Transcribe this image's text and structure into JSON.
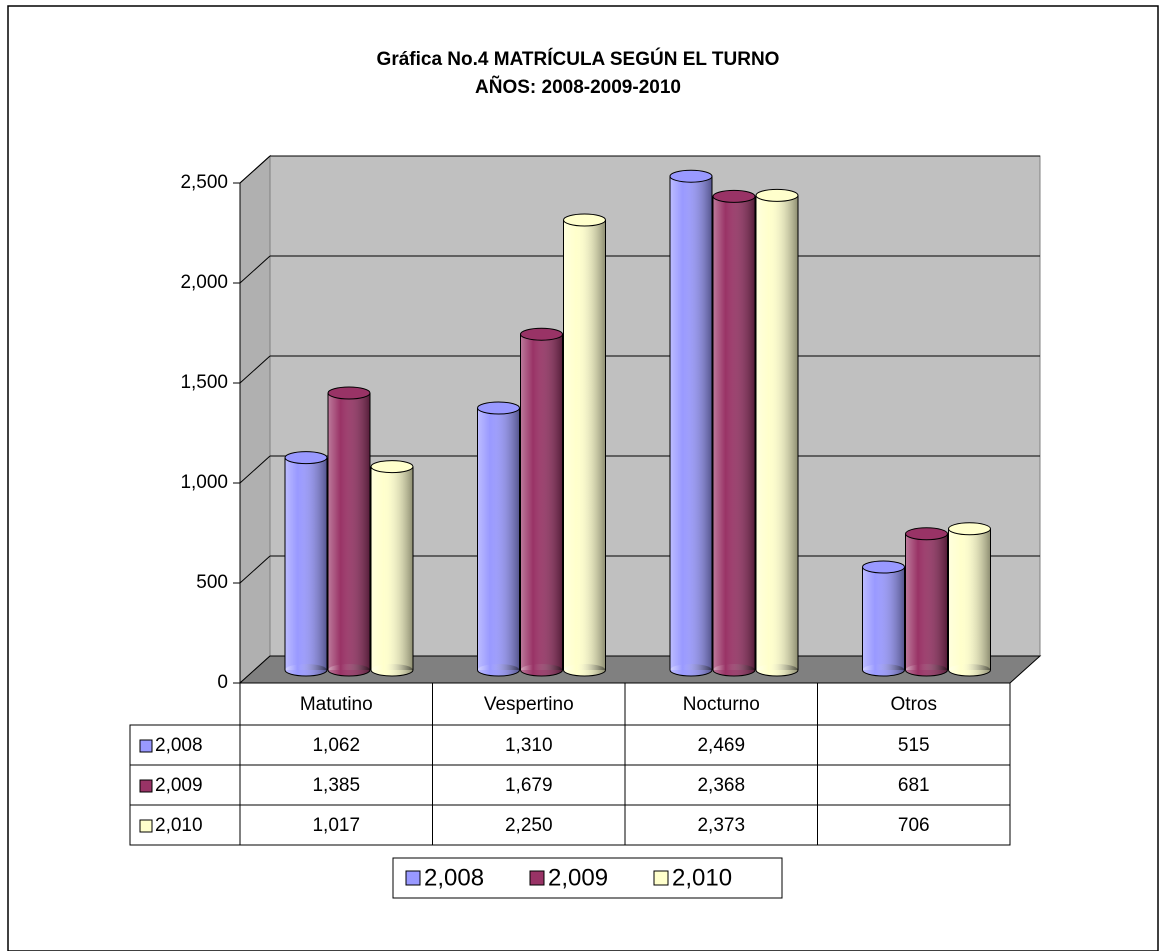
{
  "chart_data": {
    "type": "bar",
    "title": "Gráfica No.4  MATRÍCULA SEGÚN EL TURNO",
    "subtitle": "AÑOS: 2008-2009-2010",
    "categories": [
      "Matutino",
      "Vespertino",
      "Nocturno",
      "Otros"
    ],
    "series": [
      {
        "name": "2,008",
        "color": "#9999ff",
        "values": [
          1062,
          1310,
          2469,
          515
        ],
        "value_labels": [
          "1,062",
          "1,310",
          "2,469",
          "515"
        ]
      },
      {
        "name": "2,009",
        "color": "#993366",
        "values": [
          1385,
          1679,
          2368,
          681
        ],
        "value_labels": [
          "1,385",
          "1,679",
          "2,368",
          "681"
        ]
      },
      {
        "name": "2,010",
        "color": "#ffffcc",
        "values": [
          1017,
          2250,
          2373,
          706
        ],
        "value_labels": [
          "1,017",
          "2,250",
          "2,373",
          "706"
        ]
      }
    ],
    "ylim": [
      0,
      2500
    ],
    "yticks": [
      0,
      500,
      {
        "value": 1000,
        "label": "1,000"
      },
      {
        "value": 1500,
        "label": "1,500"
      },
      {
        "value": 2000,
        "label": "2,000"
      },
      {
        "value": 2500,
        "label": "2,500"
      }
    ],
    "grid": true,
    "legend": "bottom"
  }
}
